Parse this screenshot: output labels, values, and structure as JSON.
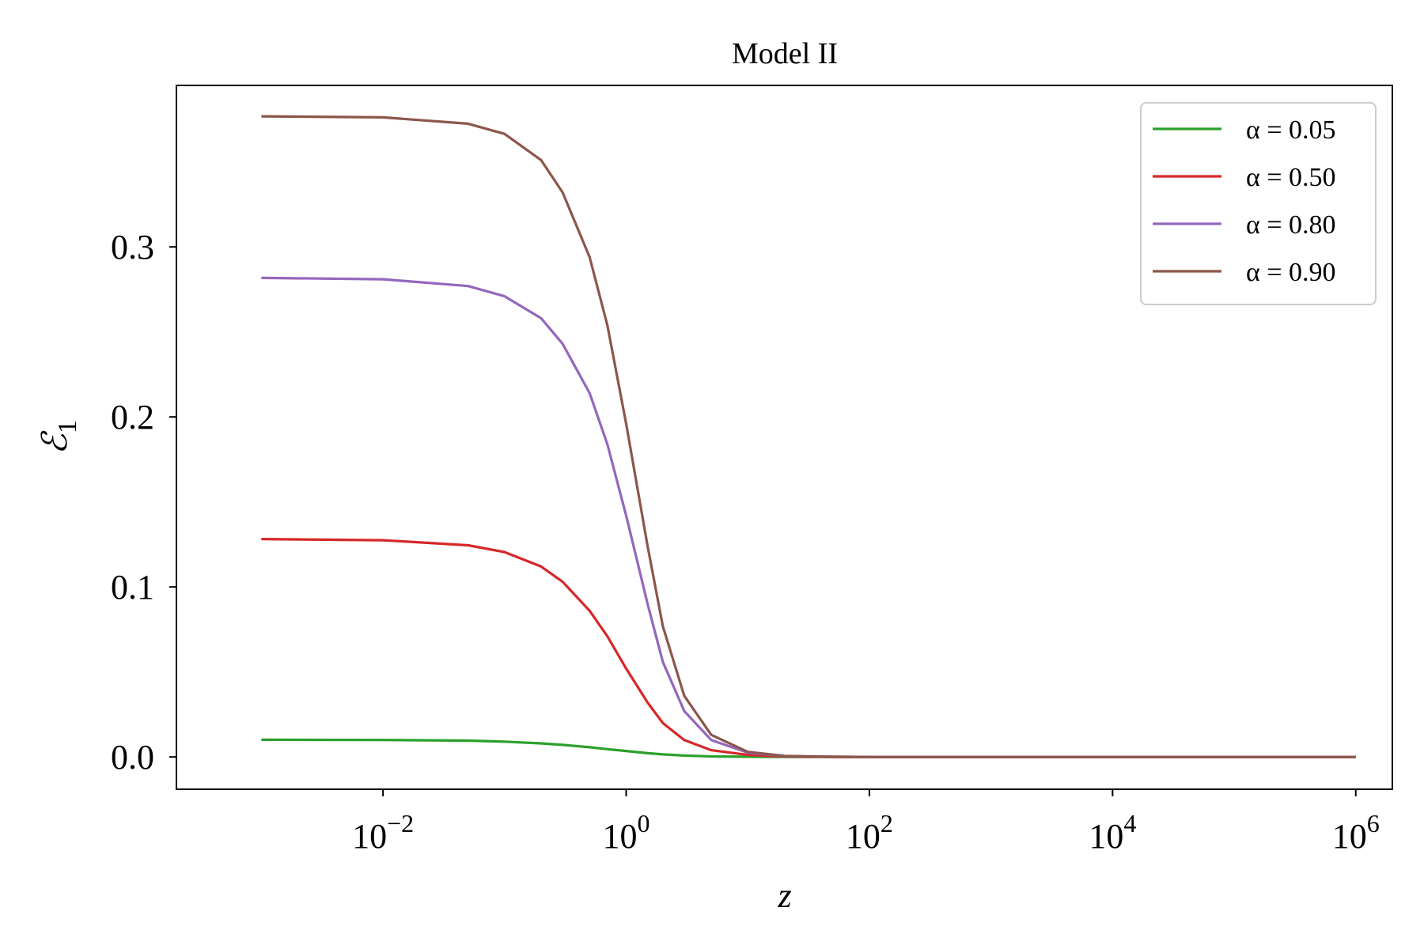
{
  "chart_data": {
    "type": "line",
    "title": "Model II",
    "xlabel": "z",
    "ylabel": "ℰ",
    "ylabel_subscript": "1",
    "x_scale": "log",
    "xlim": [
      0.0002,
      2000000
    ],
    "ylim": [
      -0.019,
      0.395
    ],
    "x_ticks": [
      {
        "value": 0.01,
        "base": "10",
        "exp": "−2"
      },
      {
        "value": 1,
        "base": "10",
        "exp": "0"
      },
      {
        "value": 100,
        "base": "10",
        "exp": "2"
      },
      {
        "value": 10000,
        "base": "10",
        "exp": "4"
      },
      {
        "value": 1000000,
        "base": "10",
        "exp": "6"
      }
    ],
    "y_ticks": [
      {
        "value": 0.0,
        "label": "0.0"
      },
      {
        "value": 0.1,
        "label": "0.1"
      },
      {
        "value": 0.2,
        "label": "0.2"
      },
      {
        "value": 0.3,
        "label": "0.3"
      }
    ],
    "grid": false,
    "legend_position": "top-right",
    "x": [
      0.001,
      0.01,
      0.05,
      0.1,
      0.2,
      0.3,
      0.5,
      0.7,
      1,
      1.5,
      2,
      3,
      5,
      10,
      20,
      50,
      100,
      1000,
      10000,
      100000,
      1000000
    ],
    "series": [
      {
        "name": "α = 0.05",
        "color": "#2ca02c",
        "values": [
          0.0101,
          0.01,
          0.0096,
          0.009,
          0.008,
          0.0071,
          0.0057,
          0.0046,
          0.0035,
          0.0022,
          0.0015,
          0.0008,
          0.0003,
          0.0001,
          0.0,
          0.0,
          0.0,
          0.0,
          0.0,
          0.0,
          0.0
        ]
      },
      {
        "name": "α = 0.50",
        "color": "#d62728",
        "values": [
          0.1282,
          0.1275,
          0.1245,
          0.1205,
          0.112,
          0.103,
          0.086,
          0.071,
          0.052,
          0.032,
          0.02,
          0.01,
          0.004,
          0.0012,
          0.0003,
          0.0,
          0.0,
          0.0,
          0.0,
          0.0,
          0.0
        ]
      },
      {
        "name": "α = 0.80",
        "color": "#9467bd",
        "values": [
          0.2818,
          0.281,
          0.277,
          0.271,
          0.258,
          0.243,
          0.214,
          0.184,
          0.142,
          0.09,
          0.056,
          0.027,
          0.01,
          0.0025,
          0.0005,
          0.0001,
          0.0,
          0.0,
          0.0,
          0.0,
          0.0
        ]
      },
      {
        "name": "α = 0.90",
        "color": "#8c564b",
        "values": [
          0.3768,
          0.3762,
          0.3725,
          0.3665,
          0.351,
          0.332,
          0.294,
          0.254,
          0.196,
          0.124,
          0.077,
          0.036,
          0.013,
          0.003,
          0.0006,
          0.0001,
          0.0,
          0.0,
          0.0,
          0.0,
          0.0
        ]
      }
    ]
  }
}
